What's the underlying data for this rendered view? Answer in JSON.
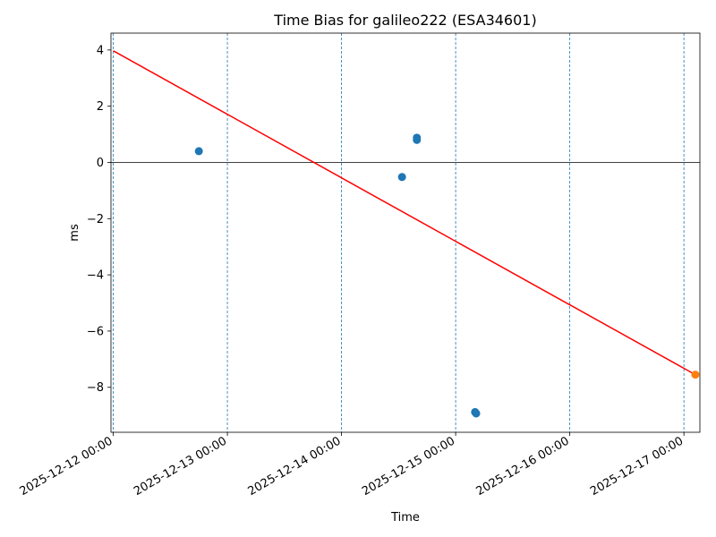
{
  "chart_data": {
    "type": "scatter",
    "title": "Time Bias for galileo222 (ESA34601)",
    "xlabel": "Time",
    "ylabel": "ms",
    "x_tick_labels": [
      "2025-12-12 00:00",
      "2025-12-13 00:00",
      "2025-12-14 00:00",
      "2025-12-15 00:00",
      "2025-12-16 00:00",
      "2025-12-17 00:00"
    ],
    "x_ticks_days": [
      0,
      1,
      2,
      3,
      4,
      5
    ],
    "y_ticks": [
      4,
      2,
      0,
      -2,
      -4,
      -6,
      -8
    ],
    "y_tick_labels": [
      "4",
      "2",
      "0",
      "−2",
      "−4",
      "−6",
      "−8"
    ],
    "xlim_days": [
      -0.02,
      5.14
    ],
    "ylim": [
      -9.6,
      4.6
    ],
    "grid": "vertical dashed at day boundaries",
    "zero_line": 0,
    "series": [
      {
        "color": "#1f77b4",
        "points": [
          {
            "x": 0.75,
            "y": 0.4
          },
          {
            "x": 2.53,
            "y": -0.52
          },
          {
            "x": 2.66,
            "y": 0.88
          },
          {
            "x": 2.66,
            "y": 0.8
          },
          {
            "x": 3.17,
            "y": -8.88
          },
          {
            "x": 3.18,
            "y": -8.93
          }
        ]
      },
      {
        "color": "#ff7f0e",
        "points": [
          {
            "x": 5.1,
            "y": -7.55
          }
        ]
      }
    ],
    "trend_line": {
      "color": "#ff0000",
      "points": [
        {
          "x": 0.0,
          "y": 3.97
        },
        {
          "x": 5.1,
          "y": -7.55
        }
      ]
    }
  }
}
